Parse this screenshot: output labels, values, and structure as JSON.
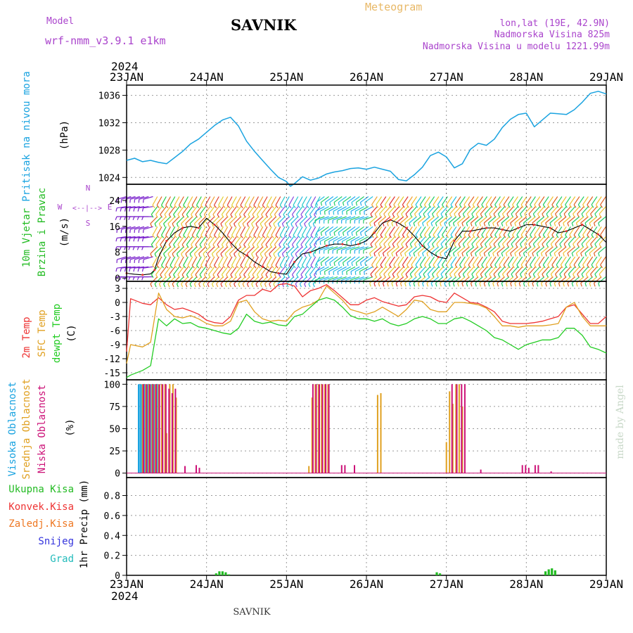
{
  "header": {
    "title": "SAVNIK",
    "meteogram_label": "Meteogram",
    "model_label": "Model",
    "model_name": "wrf-nmm_v3.9.1 e1km",
    "lonlat": "lon,lat (19E, 42.9N)",
    "elevation": "Nadmorska Visina 825m",
    "model_elevation": "Nadmorska Visina u modelu 1221.99m",
    "footer_station": "SAVNIK",
    "watermark": "made by Angel"
  },
  "time_axis": {
    "year": "2024",
    "ticks": [
      "23JAN",
      "24JAN",
      "25JAN",
      "26JAN",
      "27JAN",
      "28JAN",
      "29JAN"
    ],
    "range_days": [
      0,
      6
    ]
  },
  "colors": {
    "pressure": "#1aa3e0",
    "wind_label": "#22bb22",
    "temp2m": "#ee3333",
    "sfc": "#e0a020",
    "dewpt": "#22cc22",
    "high_cloud": "#1aa3e0",
    "mid_cloud": "#e0a020",
    "low_cloud": "#cc1177",
    "rain_total": "#22bb22",
    "rain_conv": "#ee3333",
    "freezing": "#ee7722",
    "snow": "#3333dd",
    "hail": "#22bbbb",
    "legend_purple": "#aa44cc"
  },
  "chart_data": [
    {
      "type": "line",
      "name": "pressure",
      "ylabel_main": "Pritisak na nivou mora",
      "unit": "(hPa)",
      "ylim": [
        1023,
        1037.5
      ],
      "yticks": [
        "1024",
        "1028",
        "1032",
        "1036"
      ],
      "series": [
        {
          "name": "",
          "x": [
            0,
            0.1,
            0.2,
            0.3,
            0.4,
            0.5,
            0.6,
            0.7,
            0.8,
            0.9,
            1.0,
            1.1,
            1.2,
            1.3,
            1.4,
            1.5,
            1.6,
            1.7,
            1.8,
            1.9,
            2.0,
            2.05,
            2.1,
            2.2,
            2.3,
            2.4,
            2.5,
            2.6,
            2.7,
            2.8,
            2.9,
            3.0,
            3.1,
            3.2,
            3.3,
            3.4,
            3.5,
            3.6,
            3.7,
            3.8,
            3.9,
            4.0,
            4.1,
            4.2,
            4.3,
            4.4,
            4.5,
            4.6,
            4.7,
            4.8,
            4.9,
            5.0,
            5.1,
            5.2,
            5.3,
            5.4,
            5.5,
            5.6,
            5.7,
            5.8,
            5.9,
            6.0
          ],
          "values": [
            1026.5,
            1026.8,
            1026.3,
            1026.5,
            1026.2,
            1026.0,
            1026.9,
            1027.8,
            1028.9,
            1029.6,
            1030.6,
            1031.6,
            1032.4,
            1032.8,
            1031.5,
            1029.3,
            1027.8,
            1026.5,
            1025.2,
            1024.0,
            1023.4,
            1022.7,
            1023.1,
            1024.1,
            1023.6,
            1023.9,
            1024.5,
            1024.8,
            1025.0,
            1025.3,
            1025.4,
            1025.2,
            1025.5,
            1025.2,
            1024.9,
            1023.7,
            1023.5,
            1024.4,
            1025.5,
            1027.2,
            1027.7,
            1027.0,
            1025.4,
            1026.0,
            1028.1,
            1029.0,
            1028.7,
            1029.6,
            1031.3,
            1032.5,
            1033.2,
            1033.4,
            1031.4,
            1032.4,
            1033.4,
            1033.3,
            1033.2,
            1033.9,
            1035.0,
            1036.3,
            1036.6,
            1036.2
          ]
        }
      ]
    },
    {
      "type": "line",
      "name": "wind",
      "ylabel_main": "10m Vjetar",
      "ylabel_sub": "Brzina i Pravac",
      "unit": "(m/s)",
      "ylim": [
        -1,
        29
      ],
      "yticks": [
        "0",
        "8",
        "16",
        "24"
      ],
      "compass": {
        "n": "N",
        "w": "W",
        "e": "E",
        "s": "S",
        "arrows": "<--|-->"
      },
      "series": [
        {
          "name": "",
          "x": [
            0,
            0.1,
            0.2,
            0.3,
            0.35,
            0.4,
            0.5,
            0.6,
            0.7,
            0.8,
            0.9,
            1.0,
            1.1,
            1.2,
            1.3,
            1.4,
            1.5,
            1.6,
            1.7,
            1.8,
            1.9,
            2.0,
            2.1,
            2.2,
            2.3,
            2.4,
            2.5,
            2.6,
            2.7,
            2.8,
            2.9,
            3.0,
            3.1,
            3.2,
            3.3,
            3.4,
            3.5,
            3.6,
            3.7,
            3.8,
            3.9,
            4.0,
            4.1,
            4.2,
            4.3,
            4.4,
            4.5,
            4.6,
            4.7,
            4.8,
            4.9,
            5.0,
            5.1,
            5.2,
            5.3,
            5.4,
            5.5,
            5.6,
            5.7,
            5.8,
            5.9,
            6.0
          ],
          "values": [
            1.5,
            1.2,
            1.0,
            1.3,
            2.5,
            6.5,
            11.5,
            14.0,
            15.5,
            16.0,
            15.5,
            18.5,
            16.5,
            14.0,
            11.0,
            8.5,
            7.0,
            5.0,
            3.5,
            2.0,
            1.5,
            1.2,
            5.0,
            7.5,
            8.0,
            9.0,
            10.0,
            10.5,
            10.5,
            10.0,
            10.5,
            11.5,
            14.0,
            17.0,
            18.0,
            17.0,
            15.5,
            13.0,
            10.0,
            8.0,
            6.5,
            6.0,
            11.5,
            14.5,
            14.5,
            15.0,
            15.5,
            15.5,
            15.0,
            14.5,
            15.5,
            16.5,
            16.5,
            16.0,
            15.5,
            14.0,
            14.5,
            15.5,
            16.5,
            15.0,
            13.5,
            11.0
          ]
        }
      ]
    },
    {
      "type": "line",
      "name": "temperature",
      "ylabels": [
        "2m Temp",
        "SFC Temp",
        "dewpt Temp"
      ],
      "unit": "(C)",
      "ylim": [
        -16.5,
        4.5
      ],
      "yticks": [
        "3",
        "0",
        "-3",
        "-6",
        "-9",
        "-12",
        "-15"
      ],
      "x": [
        0,
        0.05,
        0.2,
        0.3,
        0.4,
        0.5,
        0.6,
        0.7,
        0.8,
        0.9,
        1.0,
        1.1,
        1.2,
        1.3,
        1.4,
        1.5,
        1.6,
        1.7,
        1.8,
        1.9,
        2.0,
        2.1,
        2.2,
        2.3,
        2.4,
        2.5,
        2.6,
        2.7,
        2.8,
        2.9,
        3.0,
        3.1,
        3.2,
        3.3,
        3.4,
        3.5,
        3.6,
        3.7,
        3.8,
        3.9,
        4.0,
        4.1,
        4.2,
        4.3,
        4.4,
        4.5,
        4.6,
        4.7,
        4.8,
        4.9,
        5.0,
        5.1,
        5.2,
        5.3,
        5.4,
        5.5,
        5.6,
        5.7,
        5.8,
        5.9,
        6.0
      ],
      "series": [
        {
          "name": "2m",
          "values": [
            -10.5,
            0.8,
            -0.2,
            -0.5,
            1.0,
            -0.5,
            -1.5,
            -1.2,
            -1.8,
            -2.5,
            -3.8,
            -4.3,
            -4.5,
            -3.0,
            0.5,
            1.5,
            1.5,
            2.8,
            2.3,
            3.8,
            4.0,
            3.5,
            1.2,
            2.5,
            3.0,
            3.8,
            2.5,
            1.0,
            -0.5,
            -0.5,
            0.5,
            1.0,
            0.2,
            -0.3,
            -0.8,
            -0.5,
            1.2,
            1.5,
            1.2,
            0.3,
            0.0,
            2.0,
            1.0,
            0.0,
            -0.2,
            -1.0,
            -2.0,
            -4.0,
            -4.5,
            -4.5,
            -4.5,
            -4.3,
            -4.0,
            -3.5,
            -3.0,
            -1.0,
            -0.5,
            -2.5,
            -4.5,
            -4.5,
            -3.0
          ]
        },
        {
          "name": "SFC",
          "values": [
            -13.0,
            -9.0,
            -9.5,
            -8.5,
            2.0,
            -1.5,
            -3.0,
            -3.3,
            -2.8,
            -3.5,
            -4.5,
            -5.0,
            -5.0,
            -4.0,
            0.0,
            0.5,
            -2.0,
            -3.5,
            -4.0,
            -3.8,
            -4.0,
            -2.0,
            -1.0,
            -0.5,
            0.5,
            3.5,
            2.0,
            0.5,
            -1.5,
            -2.0,
            -2.5,
            -2.0,
            -1.0,
            -2.0,
            -3.0,
            -1.5,
            0.5,
            0.2,
            -1.5,
            -2.0,
            -2.0,
            0.0,
            0.0,
            -0.2,
            -0.5,
            -1.2,
            -3.0,
            -5.0,
            -5.0,
            -5.3,
            -5.0,
            -5.0,
            -5.0,
            -4.8,
            -4.5,
            -1.0,
            0.0,
            -3.0,
            -5.0,
            -5.0,
            -5.0
          ]
        },
        {
          "name": "dewpt",
          "values": [
            -16.0,
            -15.5,
            -14.5,
            -13.5,
            -3.5,
            -5.0,
            -3.5,
            -4.5,
            -4.3,
            -5.2,
            -5.5,
            -6.0,
            -6.5,
            -6.8,
            -5.5,
            -2.5,
            -4.0,
            -4.5,
            -4.2,
            -4.8,
            -5.0,
            -3.0,
            -2.5,
            -1.0,
            0.5,
            1.0,
            0.5,
            -1.0,
            -2.8,
            -3.5,
            -3.5,
            -4.0,
            -3.5,
            -4.5,
            -5.0,
            -4.5,
            -3.5,
            -3.0,
            -3.5,
            -4.5,
            -4.5,
            -3.5,
            -3.2,
            -4.0,
            -5.0,
            -6.0,
            -7.5,
            -8.0,
            -9.0,
            -10.0,
            -9.0,
            -8.5,
            -8.0,
            -8.0,
            -7.5,
            -5.5,
            -5.5,
            -7.0,
            -9.5,
            -10.0,
            -10.8
          ]
        }
      ]
    },
    {
      "type": "bar",
      "name": "cloud_cover",
      "ylabels": [
        "Visoka Oblacnost",
        "Srednja Oblacnost",
        "Niska Oblacnost"
      ],
      "unit": "(%)",
      "ylim": [
        -5,
        105
      ],
      "yticks": [
        "0",
        "25",
        "50",
        "75",
        "100"
      ],
      "series": [
        {
          "name": "high",
          "x": [
            0.16,
            0.18,
            0.2,
            0.22,
            0.24,
            0.26,
            0.28,
            0.3,
            0.32,
            0.34,
            0.36,
            0.38,
            0.4
          ],
          "values": [
            100,
            100,
            100,
            100,
            100,
            100,
            100,
            100,
            100,
            100,
            100,
            100,
            100
          ]
        },
        {
          "name": "mid",
          "x": [
            0.2,
            0.24,
            0.28,
            0.32,
            0.36,
            0.4,
            0.44,
            0.48,
            0.5,
            0.54,
            0.58,
            0.62,
            2.28,
            2.32,
            2.36,
            2.4,
            2.44,
            2.48,
            2.52,
            3.14,
            3.18,
            4.0,
            4.04,
            4.08,
            4.12,
            4.16,
            4.2
          ],
          "values": [
            100,
            100,
            100,
            100,
            100,
            100,
            100,
            100,
            45,
            100,
            100,
            85,
            8,
            85,
            100,
            100,
            100,
            100,
            100,
            88,
            90,
            35,
            92,
            78,
            100,
            100,
            75
          ]
        },
        {
          "name": "low",
          "x": [
            0.2,
            0.24,
            0.28,
            0.32,
            0.36,
            0.4,
            0.44,
            0.48,
            0.52,
            0.56,
            0.6,
            0.72,
            0.86,
            0.9,
            2.32,
            2.36,
            2.4,
            2.44,
            2.48,
            2.52,
            2.68,
            2.72,
            2.84,
            4.06,
            4.12,
            4.18,
            4.22,
            4.42,
            4.94,
            4.98,
            5.02,
            5.1,
            5.14,
            5.3
          ],
          "values": [
            100,
            100,
            100,
            100,
            100,
            100,
            100,
            100,
            95,
            90,
            95,
            8,
            9,
            6,
            100,
            100,
            100,
            100,
            100,
            100,
            9,
            9,
            9,
            100,
            100,
            100,
            100,
            4,
            9,
            9,
            6,
            9,
            9,
            2
          ]
        }
      ]
    },
    {
      "type": "bar",
      "name": "precipitation",
      "ylabels": [
        "Ukupna Kisa",
        "Konvek.Kisa",
        "Zaledj.Kisa",
        "Snijeg",
        "Grad"
      ],
      "unit": "1hr Precip (mm)",
      "ylim": [
        0,
        0.98
      ],
      "yticks": [
        "0",
        "0.2",
        "0.4",
        "0.6",
        "0.8"
      ],
      "series": [
        {
          "name": "total",
          "x": [
            1.12,
            1.16,
            1.2,
            1.24,
            1.28,
            3.88,
            3.92,
            5.24,
            5.28,
            5.32,
            5.36
          ],
          "values": [
            0.02,
            0.04,
            0.04,
            0.03,
            0.01,
            0.03,
            0.02,
            0.04,
            0.06,
            0.07,
            0.05
          ]
        }
      ]
    }
  ]
}
